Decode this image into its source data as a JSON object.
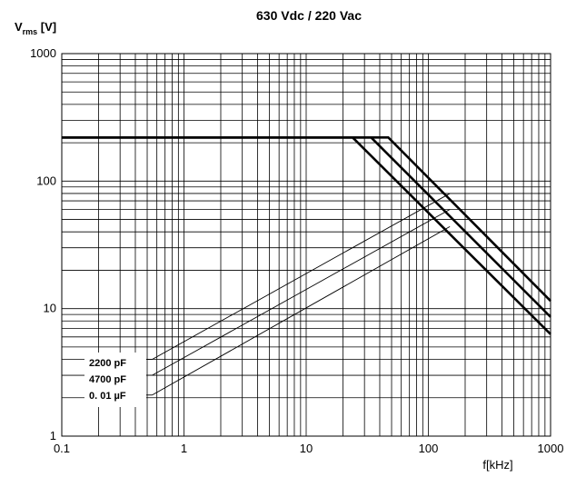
{
  "chart_data": {
    "type": "line",
    "title": "630 Vdc / 220 Vac",
    "ylabel_main": "V",
    "ylabel_sub": "rms",
    "ylabel_unit": " [V]",
    "xlabel": "f[kHz]",
    "xscale": "log",
    "yscale": "log",
    "xlim": [
      0.1,
      1000
    ],
    "ylim": [
      1,
      1000
    ],
    "grid": true,
    "x_ticks": [
      {
        "value": 0.1,
        "label": "0.1"
      },
      {
        "value": 1,
        "label": "1"
      },
      {
        "value": 10,
        "label": "10"
      },
      {
        "value": 100,
        "label": "100"
      },
      {
        "value": 1000,
        "label": "1000"
      }
    ],
    "y_ticks": [
      {
        "value": 1,
        "label": "1"
      },
      {
        "value": 10,
        "label": "10"
      },
      {
        "value": 100,
        "label": "100"
      },
      {
        "value": 1000,
        "label": "1000"
      }
    ],
    "series": [
      {
        "name": "2200 pF",
        "x": [
          0.1,
          47,
          1000
        ],
        "y": [
          220,
          220,
          11.5
        ]
      },
      {
        "name": "4700 pF",
        "x": [
          0.1,
          34,
          1000
        ],
        "y": [
          220,
          220,
          8.6
        ]
      },
      {
        "name": "0. 01  µF",
        "x": [
          0.1,
          24,
          1000
        ],
        "y": [
          220,
          220,
          6.3
        ]
      }
    ],
    "capacitor_lines": [
      {
        "name": "2200 pF",
        "x": [
          0.55,
          150
        ],
        "y": [
          4.0,
          80
        ]
      },
      {
        "name": "4700 pF",
        "x": [
          0.55,
          150
        ],
        "y": [
          3.0,
          60
        ]
      },
      {
        "name": "0. 01  µF",
        "x": [
          0.55,
          150
        ],
        "y": [
          2.1,
          44
        ]
      }
    ],
    "legend": [
      "2200 pF",
      "4700 pF",
      "0. 01  µF"
    ]
  }
}
